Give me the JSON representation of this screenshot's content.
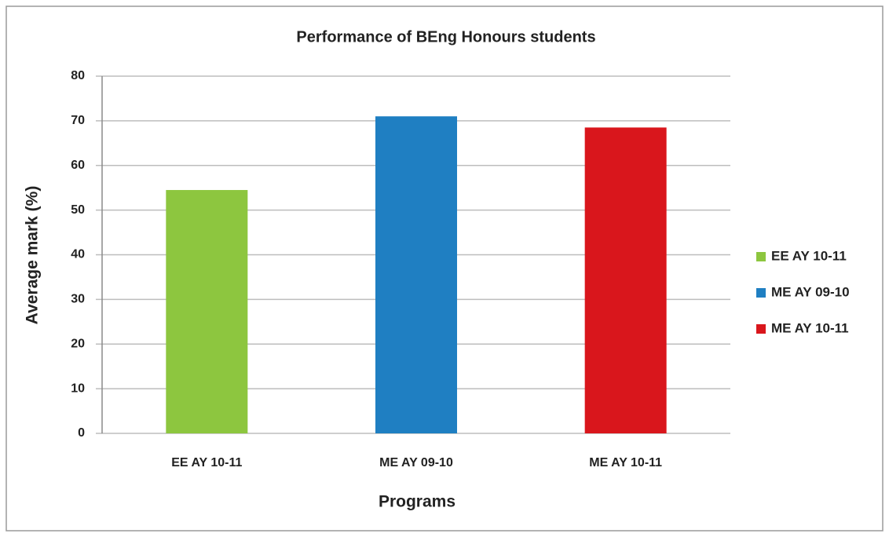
{
  "chart_data": {
    "type": "bar",
    "title": "Performance of BEng Honours students",
    "x_label": "Programs",
    "y_label": "Average mark (%)",
    "categories": [
      "EE AY 10-11",
      "ME AY 09-10",
      "ME AY 10-11"
    ],
    "values": [
      54.5,
      71,
      68.5
    ],
    "colors": [
      "#8dc63f",
      "#1f7fc2",
      "#d9161c"
    ],
    "ylim": [
      0,
      80
    ],
    "yticks": [
      0,
      10,
      20,
      30,
      40,
      50,
      60,
      70,
      80
    ],
    "grid": true,
    "legend": "right"
  }
}
